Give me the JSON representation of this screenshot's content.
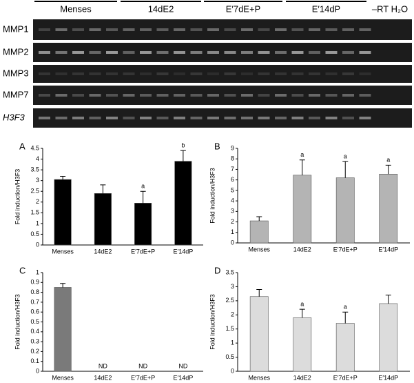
{
  "gel": {
    "groups": [
      "Menses",
      "14dE2",
      "E′7dE+P",
      "E′14dP"
    ],
    "control_label": "–RT H₂O",
    "rows": [
      "MMP1",
      "MMP2",
      "MMP3",
      "MMP7",
      "H3F3"
    ]
  },
  "chart_data": [
    {
      "type": "bar",
      "panel": "A",
      "ylabel": "Fold induction/H3F3",
      "categories": [
        "Menses",
        "14dE2",
        "E′7dE+P",
        "E′14dP"
      ],
      "values": [
        3.05,
        2.4,
        1.95,
        3.9
      ],
      "errors": [
        0.15,
        0.4,
        0.55,
        0.5
      ],
      "annotations": [
        null,
        null,
        "a",
        "b"
      ],
      "color": "#000000",
      "ylim": [
        0,
        4.5
      ],
      "yticks": [
        0,
        0.5,
        1,
        1.5,
        2,
        2.5,
        3,
        3.5,
        4,
        4.5
      ]
    },
    {
      "type": "bar",
      "panel": "B",
      "ylabel": "Fold induction/H3F3",
      "categories": [
        "Menses",
        "14dE2",
        "E′7dE+P",
        "E′14dP"
      ],
      "values": [
        2.1,
        6.45,
        6.2,
        6.55
      ],
      "errors": [
        0.4,
        1.45,
        1.55,
        0.85
      ],
      "annotations": [
        null,
        "a",
        "a",
        "a"
      ],
      "color": "#b4b4b4",
      "ylim": [
        0,
        9
      ],
      "yticks": [
        0,
        1,
        2,
        3,
        4,
        5,
        6,
        7,
        8,
        9
      ]
    },
    {
      "type": "bar",
      "panel": "C",
      "ylabel": "Fold induction/H3F3",
      "categories": [
        "Menses",
        "14dE2",
        "E′7dE+P",
        "E′14dP"
      ],
      "values": [
        0.85,
        null,
        null,
        null
      ],
      "errors": [
        0.04,
        null,
        null,
        null
      ],
      "annotations": [
        null,
        "ND",
        "ND",
        "ND"
      ],
      "color": "#7a7a7a",
      "ylim": [
        0,
        1
      ],
      "yticks": [
        0,
        0.1,
        0.2,
        0.3,
        0.4,
        0.5,
        0.6,
        0.7,
        0.8,
        0.9,
        1
      ]
    },
    {
      "type": "bar",
      "panel": "D",
      "ylabel": "Fold induction/H3F3",
      "categories": [
        "Menses",
        "14dE2",
        "E′7dE+P",
        "E′14dP"
      ],
      "values": [
        2.65,
        1.9,
        1.7,
        2.4
      ],
      "errors": [
        0.25,
        0.3,
        0.4,
        0.3
      ],
      "annotations": [
        null,
        "a",
        "a",
        null
      ],
      "color": "#dcdcdc",
      "ylim": [
        0,
        3.5
      ],
      "yticks": [
        0,
        0.5,
        1,
        1.5,
        2,
        2.5,
        3,
        3.5
      ]
    }
  ]
}
